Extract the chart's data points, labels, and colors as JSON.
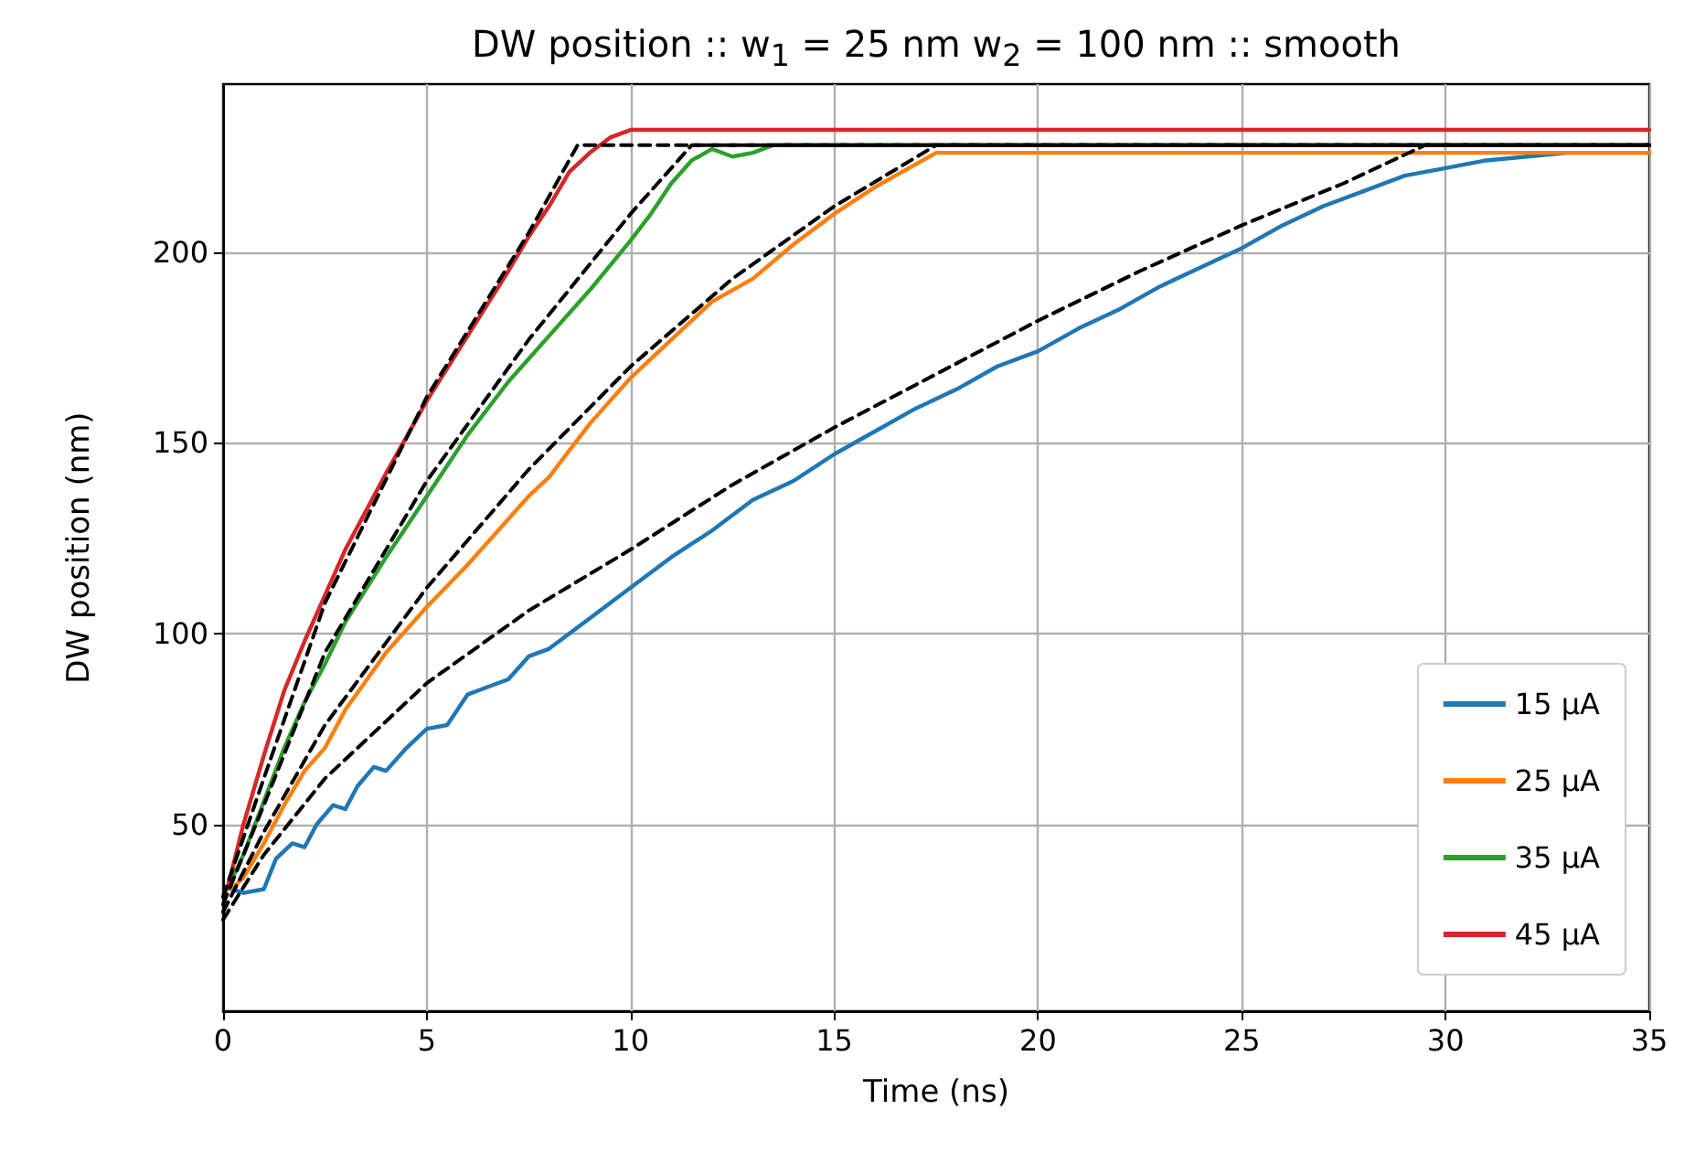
{
  "chart_data": {
    "type": "line",
    "title": "DW position :: w$_{1}$ = 25 nm w$_{2}$ = 100 nm :: smooth",
    "xlabel": "Time (ns)",
    "ylabel": "DW position (nm)",
    "xlim": [
      0,
      35
    ],
    "xticks": [
      0,
      5,
      10,
      15,
      20,
      25,
      30,
      35
    ],
    "ylim": [
      1,
      244
    ],
    "yticks": [
      50,
      100,
      150,
      200
    ],
    "grid": true,
    "legend": "bottom right",
    "marker": "none",
    "series": [
      {
        "name": "15 µA",
        "color": "#1f77b4",
        "x": [
          0.2,
          0.5,
          1,
          1.3,
          1.7,
          2,
          2.3,
          2.7,
          3,
          3.3,
          3.7,
          4,
          4.5,
          5,
          5.5,
          6,
          6.5,
          7,
          7.5,
          8,
          9,
          10,
          11,
          12,
          12.5,
          13,
          14,
          15,
          16,
          17,
          18,
          19,
          20,
          21,
          22,
          23,
          24,
          25,
          26,
          27,
          28,
          29,
          30,
          31,
          32,
          33,
          34,
          35
        ],
        "values": [
          33,
          32,
          33,
          41,
          45,
          44,
          50,
          55,
          54,
          60,
          65,
          64,
          70,
          75,
          76,
          84,
          86,
          88,
          94,
          96,
          104,
          112,
          120,
          127,
          131,
          135,
          140,
          147,
          153,
          159,
          164,
          170,
          174,
          180,
          185,
          191,
          196,
          201,
          207,
          212,
          216,
          220,
          222,
          224,
          225,
          226,
          226,
          226
        ]
      },
      {
        "name": "25 µA",
        "color": "#ff7f0e",
        "x": [
          0.2,
          0.5,
          1,
          1.5,
          2,
          2.5,
          3,
          4,
          5,
          6,
          7,
          7.5,
          8,
          9,
          10,
          11,
          12,
          12.5,
          13,
          14,
          15,
          16,
          17,
          17.5,
          18,
          20,
          25,
          30,
          35
        ],
        "values": [
          33,
          36,
          45,
          55,
          64,
          70,
          80,
          95,
          107,
          118,
          130,
          136,
          141,
          155,
          167,
          177,
          187,
          190,
          193,
          202,
          210,
          217,
          223,
          226,
          226,
          226,
          226,
          226,
          226
        ]
      },
      {
        "name": "35 µA",
        "color": "#2ca02c",
        "x": [
          0.1,
          0.5,
          1,
          1.5,
          2,
          2.5,
          3,
          4,
          5,
          6,
          7,
          7.5,
          8,
          9,
          10,
          10.5,
          11,
          11.5,
          12,
          12.5,
          13,
          13.5,
          15,
          20,
          25,
          30,
          35
        ],
        "values": [
          33,
          42,
          56,
          70,
          82,
          92,
          103,
          120,
          136,
          152,
          166,
          172,
          178,
          190,
          203,
          210,
          218,
          224,
          227,
          225,
          226,
          228,
          228,
          228,
          228,
          228,
          228
        ]
      },
      {
        "name": "45 µA",
        "color": "#d62728",
        "x": [
          0.1,
          0.5,
          1,
          1.5,
          2,
          2.5,
          3,
          4,
          5,
          6,
          7,
          7.5,
          8,
          8.5,
          9,
          9.5,
          10,
          12,
          15,
          20,
          25,
          30,
          35
        ],
        "values": [
          33,
          50,
          68,
          85,
          98,
          110,
          122,
          142,
          161,
          178,
          195,
          204,
          212,
          221,
          226,
          230,
          232,
          232,
          232,
          232,
          232,
          232,
          232
        ]
      },
      {
        "color": "#000000",
        "line_style": "dashed",
        "x": [
          0,
          1,
          2.5,
          5,
          7.5,
          10,
          12.5,
          15,
          17.5,
          20,
          22.5,
          25,
          27.5,
          29.5,
          32,
          35
        ],
        "values": [
          25,
          42,
          62,
          87,
          106,
          122,
          139,
          154,
          168,
          182,
          195,
          207,
          218,
          228,
          228,
          228
        ]
      },
      {
        "color": "#000000",
        "line_style": "dashed",
        "x": [
          0,
          1,
          2.5,
          5,
          7.5,
          10,
          12.5,
          15,
          17.5,
          20,
          25,
          30,
          35
        ],
        "values": [
          27,
          48,
          76,
          112,
          143,
          170,
          193,
          212,
          228,
          228,
          228,
          228,
          228
        ]
      },
      {
        "color": "#000000",
        "line_style": "dashed",
        "x": [
          0,
          1,
          2.5,
          5,
          7.5,
          10,
          11.5,
          15,
          20,
          25,
          30,
          35
        ],
        "values": [
          29,
          55,
          95,
          140,
          177,
          210,
          228,
          228,
          228,
          228,
          228,
          228
        ]
      },
      {
        "color": "#000000",
        "line_style": "dashed",
        "x": [
          0,
          1,
          2.5,
          5,
          7.5,
          8.7,
          10,
          15,
          20,
          25,
          30,
          35
        ],
        "values": [
          31,
          62,
          108,
          162,
          205,
          228,
          228,
          228,
          228,
          228,
          228,
          228
        ]
      }
    ]
  }
}
